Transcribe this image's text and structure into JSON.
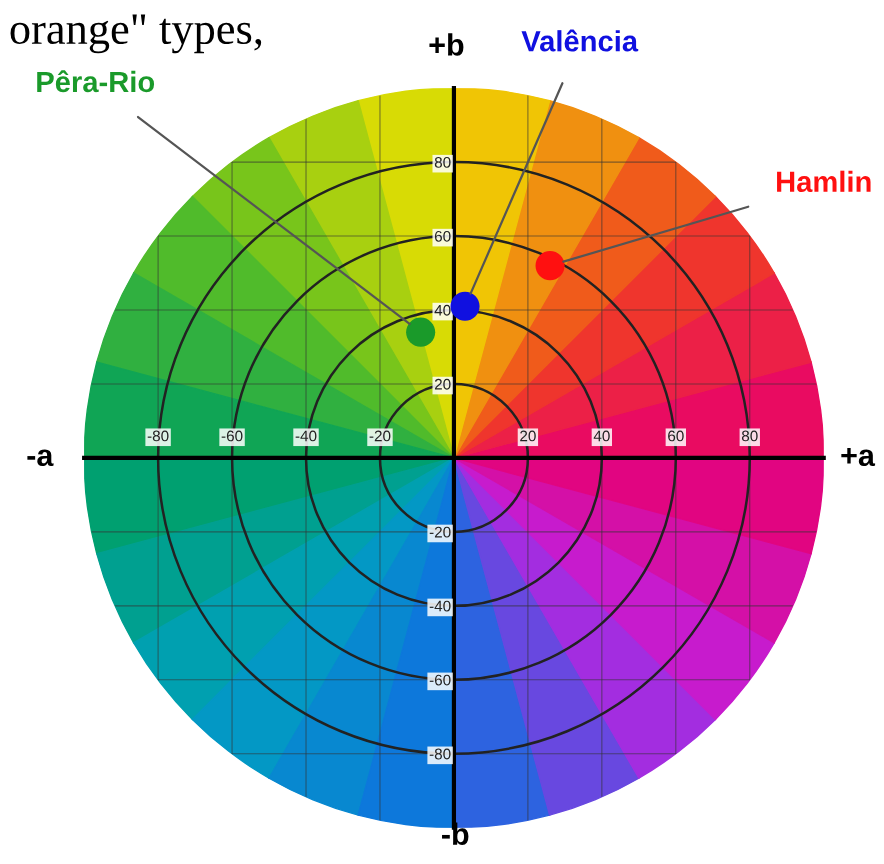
{
  "chart_data": {
    "type": "scatter",
    "annotations": [
      "orange\" types,",
      "+b",
      "-a",
      "+a",
      "-b"
    ],
    "series": [
      {
        "name": "Pêra-Rio",
        "color": "#1a9a2a",
        "x": [
          -9
        ],
        "values": [
          34
        ]
      },
      {
        "name": "Valência",
        "color": "#1010e0",
        "x": [
          3
        ],
        "values": [
          41
        ]
      },
      {
        "name": "Hamlin",
        "color": "#ff1010",
        "x": [
          26
        ],
        "values": [
          52
        ]
      }
    ],
    "xlim": [
      -100,
      100
    ],
    "ylim": [
      -100,
      100
    ],
    "xticks": [
      -80,
      -60,
      -40,
      -20,
      20,
      40,
      60,
      80
    ],
    "yticks": [
      -80,
      -60,
      -40,
      -20,
      20,
      40,
      60,
      80
    ],
    "grid": true,
    "marker": "circle",
    "legend": false
  }
}
